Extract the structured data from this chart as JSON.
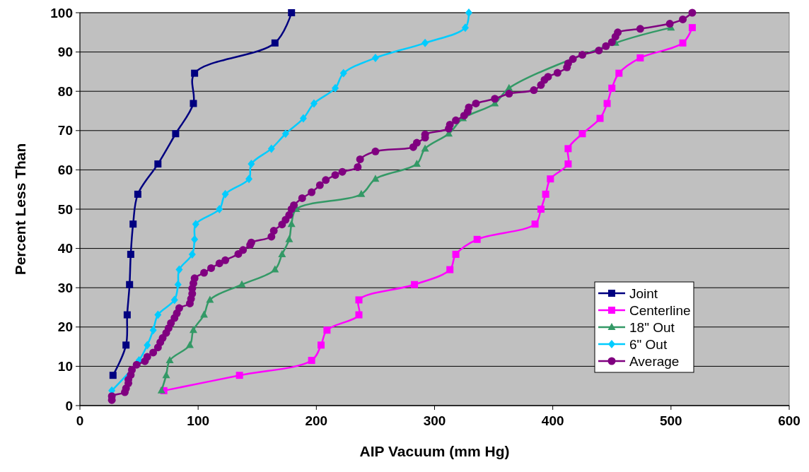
{
  "chart_data": {
    "type": "line",
    "xlabel": "AIP Vacuum (mm Hg)",
    "ylabel": "Percent Less Than",
    "xlim": [
      0,
      600
    ],
    "xticks": [
      0,
      100,
      200,
      300,
      400,
      500,
      600
    ],
    "ylim": [
      0,
      100
    ],
    "yticks": [
      0,
      10,
      20,
      30,
      40,
      50,
      60,
      70,
      80,
      90,
      100
    ],
    "grid": "y",
    "legend": "bottom right",
    "series": [
      {
        "name": "Joint",
        "color": "#000080",
        "marker": "square",
        "x": [
          28,
          39,
          40,
          42,
          43,
          45,
          49,
          66,
          81,
          96,
          97,
          165,
          179
        ],
        "values": [
          7.7,
          15.4,
          23.1,
          30.8,
          38.5,
          46.2,
          53.8,
          61.5,
          69.2,
          76.9,
          84.6,
          92.3,
          100
        ]
      },
      {
        "name": "Centerline",
        "color": "#ff00ff",
        "marker": "square",
        "x": [
          71,
          135,
          196,
          204,
          209,
          236,
          236,
          283,
          313,
          318,
          336,
          385,
          390,
          394,
          398,
          413,
          413,
          425,
          440,
          446,
          450,
          456,
          474,
          510,
          518
        ],
        "values": [
          3.8,
          7.7,
          11.5,
          15.4,
          19.2,
          23.1,
          26.9,
          30.8,
          34.6,
          38.5,
          42.3,
          46.2,
          50,
          53.8,
          57.7,
          61.5,
          65.4,
          69.2,
          73.1,
          76.9,
          80.8,
          84.6,
          88.5,
          92.3,
          96.2
        ]
      },
      {
        "name": "18\" Out",
        "color": "#339966",
        "marker": "triangle",
        "x": [
          69,
          73,
          76,
          93,
          96,
          105,
          110,
          137,
          165,
          171,
          177,
          179,
          183,
          238,
          250,
          285,
          292,
          312,
          324,
          351,
          363,
          404,
          417,
          453,
          500
        ],
        "values": [
          3.8,
          7.7,
          11.5,
          15.4,
          19.2,
          23.1,
          26.9,
          30.8,
          34.6,
          38.5,
          42.3,
          46.2,
          50,
          53.8,
          57.7,
          61.5,
          65.4,
          69.2,
          73.1,
          76.9,
          80.8,
          null,
          null,
          92.3,
          96.2
        ]
      },
      {
        "name": "6\" Out",
        "color": "#00ccff",
        "marker": "diamond",
        "x": [
          27,
          44,
          50,
          57,
          62,
          66,
          80,
          83,
          84,
          95,
          97,
          98,
          118,
          123,
          143,
          145,
          162,
          174,
          189,
          198,
          216,
          223,
          250,
          292,
          326,
          329
        ],
        "values": [
          3.8,
          null,
          11.5,
          15.4,
          19.2,
          23.1,
          26.9,
          30.8,
          34.6,
          38.5,
          42.3,
          46.2,
          50,
          53.8,
          57.7,
          61.5,
          65.4,
          69.2,
          73.1,
          76.9,
          80.8,
          84.6,
          88.5,
          92.3,
          96.2,
          100
        ]
      },
      {
        "name": "Average",
        "color": "#800080",
        "marker": "circle",
        "x": [
          27,
          27,
          38,
          39,
          41,
          41,
          43,
          44,
          48,
          55,
          57,
          62,
          66,
          68,
          70,
          73,
          75,
          77,
          80,
          82,
          84,
          93,
          94,
          95,
          95,
          96,
          97,
          105,
          111,
          118,
          123,
          134,
          138,
          144,
          145,
          162,
          164,
          171,
          174,
          177,
          179,
          181,
          188,
          196,
          203,
          208,
          216,
          222,
          235,
          237,
          250,
          282,
          285,
          292,
          292,
          312,
          313,
          318,
          325,
          328,
          329,
          335,
          351,
          363,
          384,
          390,
          393,
          396,
          404,
          412,
          413,
          417,
          425,
          439,
          445,
          450,
          453,
          455,
          474,
          499,
          510,
          518
        ],
        "values": [
          1.4,
          2.4,
          3.4,
          4.4,
          5.7,
          6.6,
          7.8,
          9.1,
          10.4,
          11.3,
          12.4,
          13.5,
          14.8,
          16.1,
          17.2,
          18.5,
          19.7,
          21,
          22.3,
          23.5,
          24.8,
          26,
          27.2,
          28.5,
          29.8,
          31.1,
          32.4,
          33.8,
          35,
          36.2,
          37,
          38.6,
          39.6,
          40.9,
          41.5,
          43,
          44.5,
          46.1,
          47.3,
          48.5,
          50,
          51,
          52.8,
          54.3,
          56.1,
          57.4,
          58.7,
          59.5,
          60.7,
          62.7,
          64.7,
          65.8,
          66.9,
          68.2,
          69,
          70.5,
          71.5,
          72.6,
          73.8,
          74.8,
          75.9,
          76.9,
          78.1,
          79.4,
          80.3,
          81.6,
          82.9,
          83.7,
          84.7,
          86.1,
          87.1,
          88.2,
          89.3,
          90.4,
          91.5,
          92.5,
          93.9,
          95,
          95.9,
          97.2,
          98.3,
          100
        ]
      }
    ]
  }
}
